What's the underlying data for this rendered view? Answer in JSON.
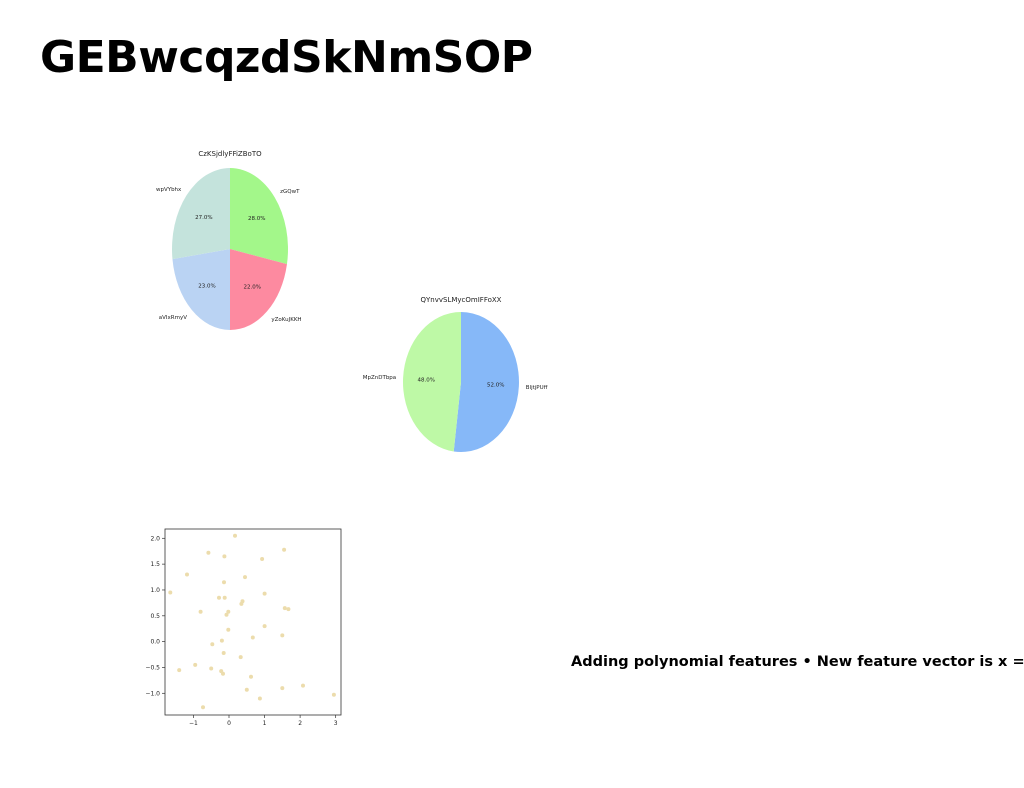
{
  "page": {
    "title": "GEBwcqzdSkNmSOP",
    "caption": "Adding polynomial features • New feature vector is x ="
  },
  "chart_data": [
    {
      "type": "pie",
      "title": "CzKSjdlyFFiZBoTO",
      "slices": [
        {
          "label": "zGQwT",
          "value": 28.0,
          "pct_label": "28.0%",
          "color": "#a3f78a"
        },
        {
          "label": "yZoKuJKKH",
          "value": 22.0,
          "pct_label": "22.0%",
          "color": "#fd8aa0"
        },
        {
          "label": "aVIxRmyV",
          "value": 23.0,
          "pct_label": "23.0%",
          "color": "#bad3f3"
        },
        {
          "label": "wpVYbhx",
          "value": 27.0,
          "pct_label": "27.0%",
          "color": "#c4e3dc"
        }
      ]
    },
    {
      "type": "pie",
      "title": "QYnvvSLMycOmIFFoXX",
      "slices": [
        {
          "label": "BljtjPUff",
          "value": 52.0,
          "pct_label": "52.0%",
          "color": "#86b8f8"
        },
        {
          "label": "MpZnDTbpa",
          "value": 48.0,
          "pct_label": "48.0%",
          "color": "#bef9a6"
        }
      ]
    },
    {
      "type": "scatter",
      "title": "",
      "xlabel": "",
      "ylabel": "",
      "xlim": [
        -1.8,
        3.15
      ],
      "ylim": [
        -1.42,
        2.18
      ],
      "xticks": [
        -1,
        0,
        1,
        2,
        3
      ],
      "yticks": [
        -1.0,
        -0.5,
        0.0,
        0.5,
        1.0,
        1.5,
        2.0
      ],
      "xtick_labels": [
        "−1",
        "0",
        "1",
        "2",
        "3"
      ],
      "ytick_labels": [
        "−1.0",
        "−0.5",
        "0.0",
        "0.5",
        "1.0",
        "1.5",
        "2.0"
      ],
      "grid": false,
      "color": "#ecdcac",
      "points": [
        {
          "x": 0.17,
          "y": 2.05
        },
        {
          "x": -0.58,
          "y": 1.72
        },
        {
          "x": -0.13,
          "y": 1.65
        },
        {
          "x": 1.55,
          "y": 1.78
        },
        {
          "x": 0.93,
          "y": 1.6
        },
        {
          "x": -1.18,
          "y": 1.3
        },
        {
          "x": 0.45,
          "y": 1.25
        },
        {
          "x": -0.14,
          "y": 1.15
        },
        {
          "x": -1.65,
          "y": 0.95
        },
        {
          "x": 1.0,
          "y": 0.93
        },
        {
          "x": -0.28,
          "y": 0.85
        },
        {
          "x": -0.12,
          "y": 0.85
        },
        {
          "x": 0.38,
          "y": 0.78
        },
        {
          "x": 0.35,
          "y": 0.73
        },
        {
          "x": 1.57,
          "y": 0.65
        },
        {
          "x": 1.67,
          "y": 0.63
        },
        {
          "x": -0.8,
          "y": 0.58
        },
        {
          "x": -0.02,
          "y": 0.58
        },
        {
          "x": -0.07,
          "y": 0.52
        },
        {
          "x": 1.0,
          "y": 0.3
        },
        {
          "x": -0.02,
          "y": 0.23
        },
        {
          "x": 1.5,
          "y": 0.12
        },
        {
          "x": 0.67,
          "y": 0.08
        },
        {
          "x": -0.2,
          "y": 0.02
        },
        {
          "x": -0.47,
          "y": -0.05
        },
        {
          "x": -0.15,
          "y": -0.22
        },
        {
          "x": 0.33,
          "y": -0.3
        },
        {
          "x": -0.95,
          "y": -0.45
        },
        {
          "x": -1.4,
          "y": -0.55
        },
        {
          "x": -0.5,
          "y": -0.52
        },
        {
          "x": -0.22,
          "y": -0.57
        },
        {
          "x": -0.17,
          "y": -0.62
        },
        {
          "x": 0.62,
          "y": -0.68
        },
        {
          "x": 2.08,
          "y": -0.85
        },
        {
          "x": 1.5,
          "y": -0.9
        },
        {
          "x": 0.5,
          "y": -0.93
        },
        {
          "x": 2.95,
          "y": -1.03
        },
        {
          "x": 0.87,
          "y": -1.1
        },
        {
          "x": -0.73,
          "y": -1.27
        }
      ]
    }
  ]
}
